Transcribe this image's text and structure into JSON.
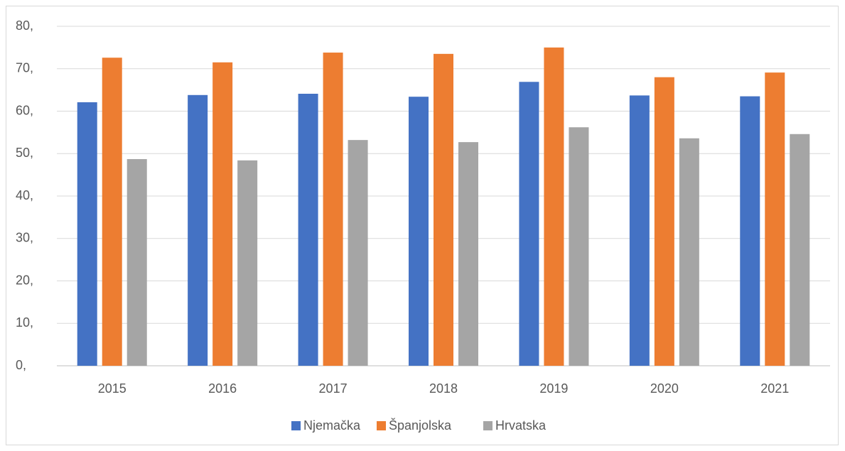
{
  "chart_data": {
    "type": "bar",
    "categories": [
      "2015",
      "2016",
      "2017",
      "2018",
      "2019",
      "2020",
      "2021"
    ],
    "series": [
      {
        "name": "Njemačka",
        "color": "#4472c4",
        "values": [
          62.1,
          63.8,
          64.1,
          63.4,
          66.9,
          63.7,
          63.5
        ]
      },
      {
        "name": "Španjolska",
        "color": "#ed7d31",
        "values": [
          72.6,
          71.5,
          73.8,
          73.5,
          75.0,
          68.0,
          69.1
        ]
      },
      {
        "name": "Hrvatska",
        "color": "#a5a5a5",
        "values": [
          48.7,
          48.4,
          53.2,
          52.7,
          56.2,
          53.6,
          54.6
        ]
      }
    ],
    "ylim": [
      0,
      80
    ],
    "yticks": [
      {
        "value": 0,
        "label": "0,"
      },
      {
        "value": 10,
        "label": "10,"
      },
      {
        "value": 20,
        "label": "20,"
      },
      {
        "value": 30,
        "label": "30,"
      },
      {
        "value": 40,
        "label": "40,"
      },
      {
        "value": 50,
        "label": "50,"
      },
      {
        "value": 60,
        "label": "60,"
      },
      {
        "value": 70,
        "label": "70,"
      },
      {
        "value": 80,
        "label": "80,"
      }
    ],
    "grid": true,
    "legend": "bottom"
  }
}
